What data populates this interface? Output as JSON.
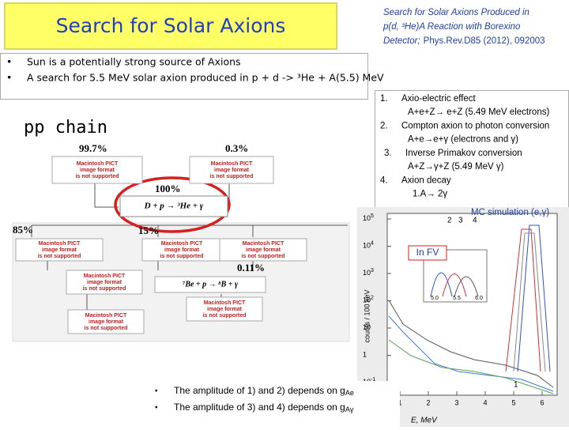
{
  "title": "Search for Solar Axions",
  "reference": {
    "italic_lines": [
      "Search for Solar Axions Produced in",
      "p(d, ³He)A Reaction with Borexino",
      "Detector;"
    ],
    "citation": "Phys.Rev.D85 (2012), 092003"
  },
  "bullets": [
    "Sun is a potentially strong source of Axions",
    "A search for 5.5 MeV solar axion produced in p + d -> ³He + A(5.5) MeV"
  ],
  "pp_chain": {
    "label": "pp chain",
    "pict_lines": [
      "Macintosh PICT",
      "image format",
      "is not supported"
    ],
    "branches": [
      "99.7%",
      "0.3%",
      "100%",
      "85%",
      "15%",
      "0.11%"
    ],
    "reactions": [
      "D + p → ³He + γ",
      "⁷Be + p → ⁸B + γ"
    ]
  },
  "channels": [
    {
      "number": "1.",
      "name": "Axio-electric effect",
      "reaction": "A+e+Z→ e+Z (5.49 MeV electrons)"
    },
    {
      "number": "2.",
      "name": "Compton  axion to photon conversion",
      "reaction": "A+e→e+γ (electrons and γ)"
    },
    {
      "number": "3.",
      "name": "Inverse Primakov conversion",
      "reaction": "A+Z→γ+Z (5.49 MeV γ)"
    },
    {
      "number": "4.",
      "name": "Axion decay",
      "reaction": "1.A→ 2γ"
    }
  ],
  "plot": {
    "annotation": "MC simulation (e,γ)",
    "inset_label": "In FV",
    "y_label": "counts / 100 keV",
    "x_label": "E, MeV",
    "y_tick_labels": [
      {
        "base": "10",
        "exp": "5"
      },
      {
        "base": "10",
        "exp": "4"
      },
      {
        "base": "10",
        "exp": "3"
      },
      {
        "base": "10",
        "exp": "2"
      },
      {
        "base": "10",
        "exp": ""
      },
      {
        "base": "1",
        "exp": ""
      },
      {
        "base": "10",
        "exp": "-1"
      }
    ],
    "x_tick_labels": [
      "1",
      "2",
      "3",
      "4",
      "5",
      "6"
    ],
    "inset_tick_labels": [
      "5.0",
      "5.5",
      "6.0"
    ],
    "curve_labels": [
      "2",
      "3",
      "4",
      "1"
    ]
  },
  "conclusions": [
    {
      "text": "The amplitude of 1) and 2) depends on g",
      "sub": "Ae"
    },
    {
      "text": "The amplitude of 3) and 4) depends on g",
      "sub": "Aγ"
    }
  ]
}
